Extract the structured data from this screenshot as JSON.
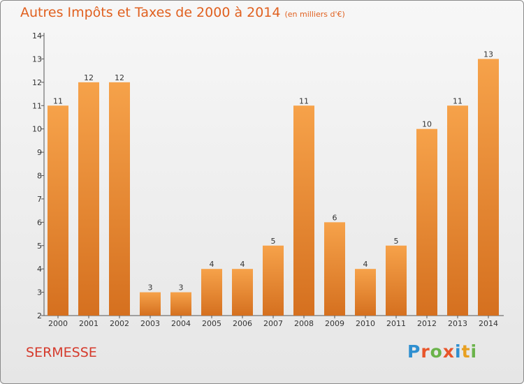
{
  "title": "Autres Impôts et Taxes de 2000 à 2014",
  "subtitle": "(en milliers d'€)",
  "commune": "SERMESSE",
  "logo": {
    "text": "Proxiti",
    "colors": [
      "#2f8fd0",
      "#e8552a",
      "#6ab34a",
      "#e8552a",
      "#2f8fd0",
      "#e8a020",
      "#6ab34a"
    ]
  },
  "colors": {
    "bar_light": "#f6a24a",
    "bar_dark": "#d5701f",
    "text": "#e0601f",
    "commune": "#d53a2c"
  },
  "chart_data": {
    "type": "bar",
    "categories": [
      "2000",
      "2001",
      "2002",
      "2003",
      "2004",
      "2005",
      "2006",
      "2007",
      "2008",
      "2009",
      "2010",
      "2011",
      "2012",
      "2013",
      "2014"
    ],
    "values": [
      11,
      12,
      12,
      3,
      3,
      4,
      4,
      5,
      11,
      6,
      4,
      5,
      10,
      11,
      13
    ],
    "ylim": [
      2,
      14
    ],
    "yticks": [
      2,
      3,
      4,
      5,
      6,
      7,
      8,
      9,
      10,
      11,
      12,
      13,
      14
    ],
    "grid": false,
    "data_labels": true
  }
}
